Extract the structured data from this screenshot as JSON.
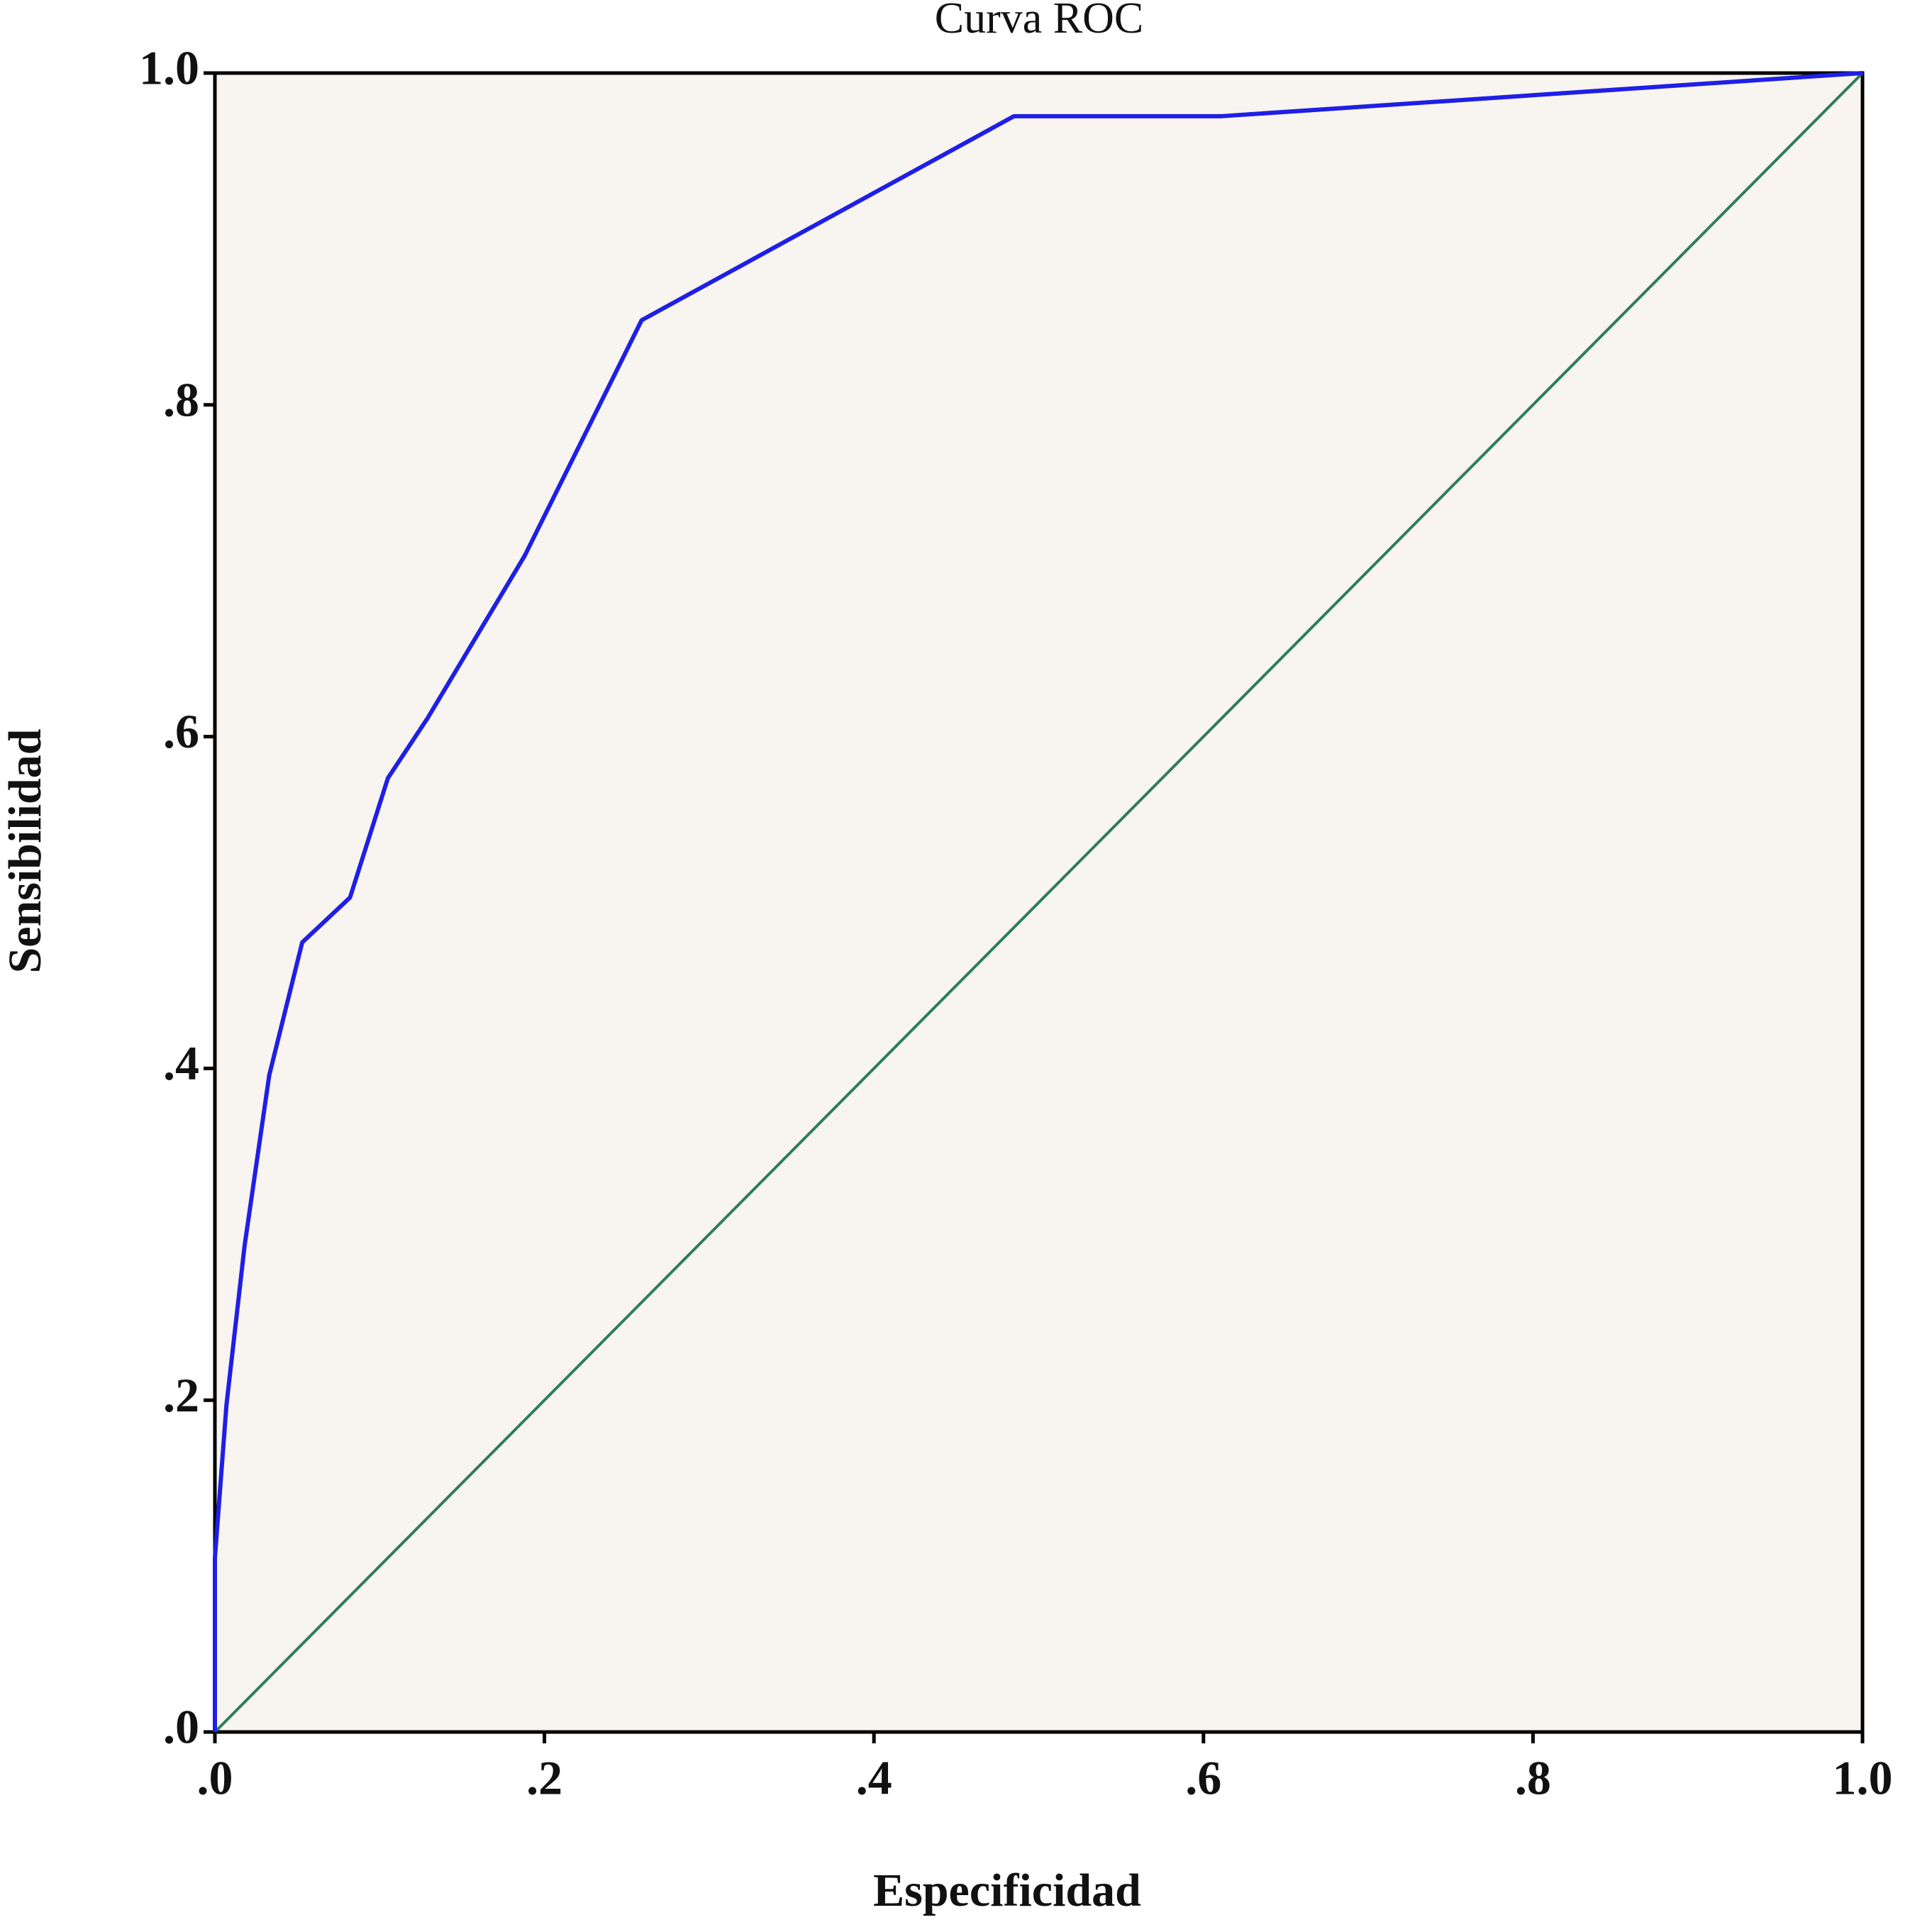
{
  "chart_data": {
    "type": "line",
    "title": "Curva ROC",
    "x_label": "Especificidad",
    "y_label": "Sensibilidad",
    "xlim": [
      0,
      1
    ],
    "ylim": [
      0,
      1
    ],
    "xticks": [
      {
        "value": 0,
        "label": ".0"
      },
      {
        "value": 0.2,
        "label": ".2"
      },
      {
        "value": 0.4,
        "label": ".4"
      },
      {
        "value": 0.6,
        "label": ".6"
      },
      {
        "value": 0.8,
        "label": ".8"
      },
      {
        "value": 1,
        "label": "1.0"
      }
    ],
    "yticks": [
      {
        "value": 0,
        "label": ".0"
      },
      {
        "value": 0.2,
        "label": ".2"
      },
      {
        "value": 0.4,
        "label": ".4"
      },
      {
        "value": 0.6,
        "label": ".6"
      },
      {
        "value": 0.8,
        "label": ".8"
      },
      {
        "value": 1,
        "label": "1.0"
      }
    ],
    "background": "#f8f4ef",
    "series": [
      {
        "color": "#1f1fe6",
        "x": [
          0,
          0,
          0.007,
          0.018,
          0.033,
          0.053,
          0.082,
          0.105,
          0.129,
          0.188,
          0.259,
          0.485,
          0.611,
          1
        ],
        "values": [
          0,
          0.105,
          0.197,
          0.293,
          0.396,
          0.476,
          0.503,
          0.575,
          0.611,
          0.709,
          0.851,
          0.974,
          0.974,
          1
        ]
      },
      {
        "color": "#2e7d5a",
        "x": [
          0,
          1
        ],
        "values": [
          0,
          1
        ]
      }
    ]
  }
}
